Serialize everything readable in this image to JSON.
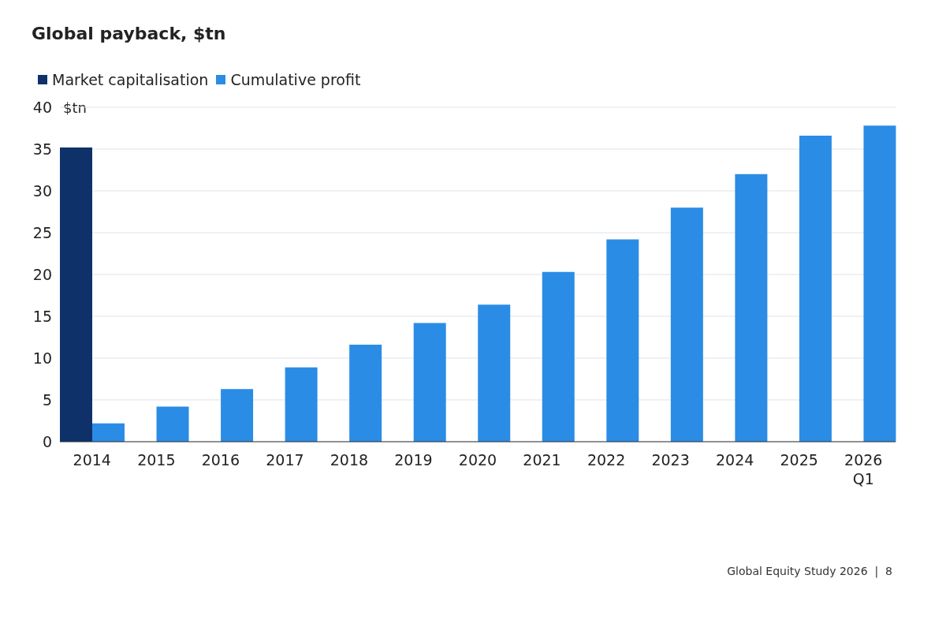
{
  "chart_data": {
    "type": "bar",
    "title": "Global payback, $tn",
    "ylabel": "$tn",
    "categories": [
      "2014",
      "2015",
      "2016",
      "2017",
      "2018",
      "2019",
      "2020",
      "2021",
      "2022",
      "2023",
      "2024",
      "2025",
      "2026\nQ1"
    ],
    "series": [
      {
        "name": "Market capitalisation",
        "color": "#0d3168",
        "values": [
          35.2,
          null,
          null,
          null,
          null,
          null,
          null,
          null,
          null,
          null,
          null,
          null,
          null
        ]
      },
      {
        "name": "Cumulative profit",
        "color": "#2b8ce6",
        "values": [
          2.2,
          4.2,
          6.3,
          8.9,
          11.6,
          14.2,
          16.4,
          20.3,
          24.2,
          28.0,
          32.0,
          36.6,
          37.8
        ]
      }
    ],
    "ylim": [
      0,
      40
    ],
    "yticks": [
      0,
      5,
      10,
      15,
      20,
      25,
      30,
      35,
      40
    ],
    "grid": "y",
    "legend": "top left",
    "annotations": [
      "Global Equity Study 2026  |  8"
    ]
  }
}
